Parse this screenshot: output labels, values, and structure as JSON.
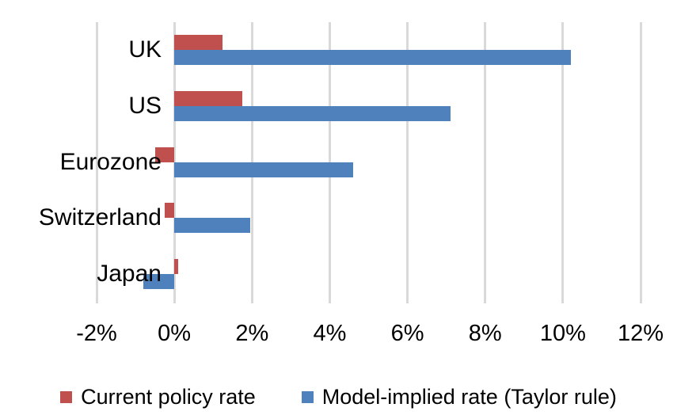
{
  "chart_data": {
    "type": "bar",
    "orientation": "horizontal",
    "title": "",
    "xlabel": "",
    "ylabel": "",
    "categories": [
      "UK",
      "US",
      "Eurozone",
      "Switzerland",
      "Japan"
    ],
    "series": [
      {
        "name": "Current policy rate",
        "color": "#C0504D",
        "values": [
          1.25,
          1.75,
          -0.5,
          -0.25,
          0.1
        ]
      },
      {
        "name": "Model-implied rate (Taylor rule)",
        "color": "#4F81BD",
        "values": [
          10.2,
          7.1,
          4.6,
          1.95,
          -0.8
        ]
      }
    ],
    "xlim": [
      -2,
      12
    ],
    "x_ticks": [
      -2,
      0,
      2,
      4,
      6,
      8,
      10,
      12
    ],
    "x_tick_labels": [
      "-2%",
      "0%",
      "2%",
      "4%",
      "6%",
      "8%",
      "10%",
      "12%"
    ],
    "grid": true,
    "gridline_color": "#d9d9d9",
    "text_color": "#000000",
    "legend_position": "bottom"
  }
}
